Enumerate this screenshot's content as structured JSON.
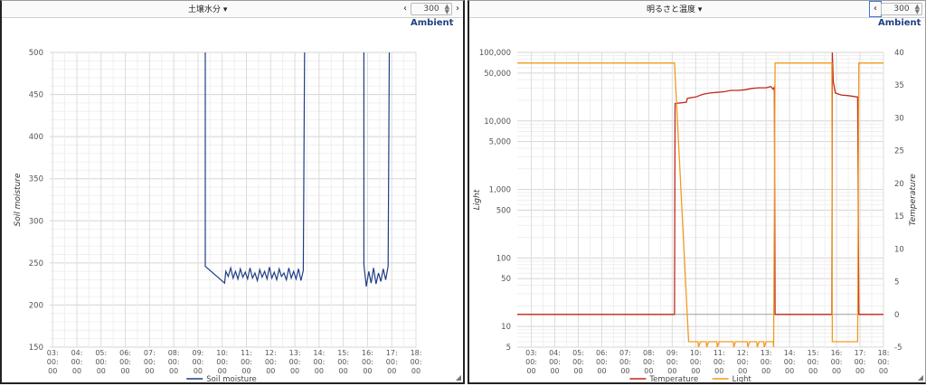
{
  "panels": [
    {
      "title": "土壌水分 ▾",
      "interval_value": "300",
      "prev_icon": "chevron-left-icon",
      "next_icon": "chevron-right-icon",
      "brand": "Ambient"
    },
    {
      "title": "明るさと温度 ▾",
      "interval_value": "300",
      "prev_icon": "chevron-left-icon",
      "next_icon": "chevron-right-icon",
      "brand": "Ambient"
    }
  ],
  "chart_data": [
    {
      "type": "line",
      "title": "",
      "xlabel": "",
      "ylabel": "Soil moisture",
      "ylim": [
        150,
        500
      ],
      "yticks": [
        150,
        200,
        250,
        300,
        350,
        400,
        450,
        500
      ],
      "xticks": [
        "03:\n00:\n00",
        "04:\n00:\n00",
        "05:\n00:\n00",
        "06:\n00:\n00",
        "07:\n00:\n00",
        "08:\n00:\n00",
        "09:\n00:\n00",
        "10:\n00:\n00",
        "11:\n00:\n00",
        "12:\n00:\n00",
        "13:\n00:\n00",
        "14:\n00:\n00",
        "15:\n00:\n00",
        "16:\n00:\n00",
        "17:\n00:\n00",
        "18:\n00:\n00"
      ],
      "xlim": [
        2.88,
        18.0
      ],
      "grid": true,
      "legend": "bottom",
      "color": "#1f3f84",
      "series": [
        {
          "name": "Soil moisture",
          "points": [
            [
              9.3,
              500
            ],
            [
              9.3,
              246
            ],
            [
              10.1,
              226
            ],
            [
              10.15,
              240
            ],
            [
              10.25,
              234
            ],
            [
              10.35,
              244
            ],
            [
              10.45,
              232
            ],
            [
              10.55,
              240
            ],
            [
              10.65,
              231
            ],
            [
              10.75,
              243
            ],
            [
              10.85,
              233
            ],
            [
              10.95,
              239
            ],
            [
              11.05,
              231
            ],
            [
              11.15,
              244
            ],
            [
              11.25,
              232
            ],
            [
              11.35,
              238
            ],
            [
              11.45,
              229
            ],
            [
              11.55,
              242
            ],
            [
              11.65,
              233
            ],
            [
              11.75,
              240
            ],
            [
              11.85,
              231
            ],
            [
              11.95,
              245
            ],
            [
              12.05,
              232
            ],
            [
              12.15,
              239
            ],
            [
              12.25,
              230
            ],
            [
              12.35,
              243
            ],
            [
              12.45,
              234
            ],
            [
              12.55,
              238
            ],
            [
              12.65,
              230
            ],
            [
              12.75,
              244
            ],
            [
              12.85,
              232
            ],
            [
              12.95,
              240
            ],
            [
              13.05,
              231
            ],
            [
              13.15,
              243
            ],
            [
              13.25,
              229
            ],
            [
              13.35,
              241
            ],
            [
              13.4,
              500
            ],
            null,
            [
              15.85,
              500
            ],
            [
              15.85,
              248
            ],
            [
              15.95,
              222
            ],
            [
              16.05,
              240
            ],
            [
              16.15,
              226
            ],
            [
              16.25,
              244
            ],
            [
              16.35,
              225
            ],
            [
              16.45,
              238
            ],
            [
              16.55,
              228
            ],
            [
              16.65,
              243
            ],
            [
              16.75,
              230
            ],
            [
              16.85,
              246
            ],
            [
              16.9,
              500
            ]
          ]
        }
      ]
    },
    {
      "type": "line",
      "title": "",
      "xlabel": "",
      "ylabel_left": "Light",
      "ylabel_right": "Temperature",
      "y_left_scale": "log",
      "y_left_lim": [
        5,
        100000
      ],
      "y_left_ticks": [
        {
          "value": 5,
          "label": "5"
        },
        {
          "value": 10,
          "label": "10"
        },
        {
          "value": 50,
          "label": "50"
        },
        {
          "value": 100,
          "label": "100"
        },
        {
          "value": 500,
          "label": "500"
        },
        {
          "value": 1000,
          "label": "1,000"
        },
        {
          "value": 5000,
          "label": "5,000"
        },
        {
          "value": 10000,
          "label": "10,000"
        },
        {
          "value": 50000,
          "label": "50,000"
        },
        {
          "value": 100000,
          "label": "100,000"
        }
      ],
      "y_right_lim": [
        -5,
        40
      ],
      "y_right_ticks": [
        -5,
        0,
        5,
        10,
        15,
        20,
        25,
        30,
        35,
        40
      ],
      "xticks": [
        "03:\n00:\n00",
        "04:\n00:\n00",
        "05:\n00:\n00",
        "06:\n00:\n00",
        "07:\n00:\n00",
        "08:\n00:\n00",
        "09:\n00:\n00",
        "10:\n00:\n00",
        "11:\n00:\n00",
        "12:\n00:\n00",
        "13:\n00:\n00",
        "14:\n00:\n00",
        "15:\n00:\n00",
        "16:\n00:\n00",
        "17:\n00:\n00",
        "18:\n00:\n00"
      ],
      "xlim": [
        2.4,
        18.0
      ],
      "grid": true,
      "legend": "bottom",
      "series": [
        {
          "name": "Temperature",
          "axis": "right",
          "color": "#c0291c",
          "points": [
            [
              2.4,
              0
            ],
            [
              9.1,
              0
            ],
            [
              9.12,
              32.2
            ],
            [
              9.6,
              32.4
            ],
            [
              9.65,
              33.0
            ],
            [
              10.0,
              33.2
            ],
            [
              10.3,
              33.6
            ],
            [
              10.6,
              33.8
            ],
            [
              10.9,
              33.9
            ],
            [
              11.2,
              34.0
            ],
            [
              11.5,
              34.2
            ],
            [
              11.8,
              34.2
            ],
            [
              12.1,
              34.3
            ],
            [
              12.4,
              34.5
            ],
            [
              12.7,
              34.6
            ],
            [
              13.0,
              34.6
            ],
            [
              13.2,
              34.8
            ],
            [
              13.3,
              34.4
            ],
            [
              13.35,
              34.7
            ],
            [
              13.38,
              0
            ],
            [
              15.8,
              0
            ],
            [
              15.82,
              40
            ],
            [
              15.86,
              35.6
            ],
            [
              15.95,
              33.8
            ],
            [
              16.2,
              33.5
            ],
            [
              16.5,
              33.4
            ],
            [
              16.9,
              33.2
            ],
            [
              16.95,
              0
            ],
            [
              18.0,
              0
            ]
          ]
        },
        {
          "name": "Light",
          "axis": "left",
          "color": "#f39a1e",
          "points": [
            [
              2.4,
              70000
            ],
            [
              9.1,
              70000
            ],
            [
              9.7,
              6
            ],
            [
              10.1,
              6
            ],
            [
              10.12,
              5
            ],
            [
              10.2,
              6
            ],
            [
              10.45,
              6
            ],
            [
              10.47,
              5
            ],
            [
              10.55,
              6
            ],
            [
              10.9,
              6
            ],
            [
              10.92,
              5
            ],
            [
              11.0,
              6
            ],
            [
              11.6,
              6
            ],
            [
              11.62,
              5
            ],
            [
              11.7,
              6
            ],
            [
              12.2,
              6
            ],
            [
              12.22,
              5
            ],
            [
              12.3,
              6
            ],
            [
              12.6,
              6
            ],
            [
              12.62,
              5
            ],
            [
              12.7,
              6
            ],
            [
              12.9,
              6
            ],
            [
              12.92,
              5
            ],
            [
              13.0,
              6
            ],
            [
              13.3,
              6
            ],
            [
              13.32,
              5
            ],
            [
              13.38,
              70000
            ],
            [
              15.8,
              70000
            ],
            [
              15.82,
              6
            ],
            [
              16.9,
              6
            ],
            [
              16.95,
              70000
            ],
            [
              18.0,
              70000
            ]
          ]
        }
      ]
    }
  ]
}
